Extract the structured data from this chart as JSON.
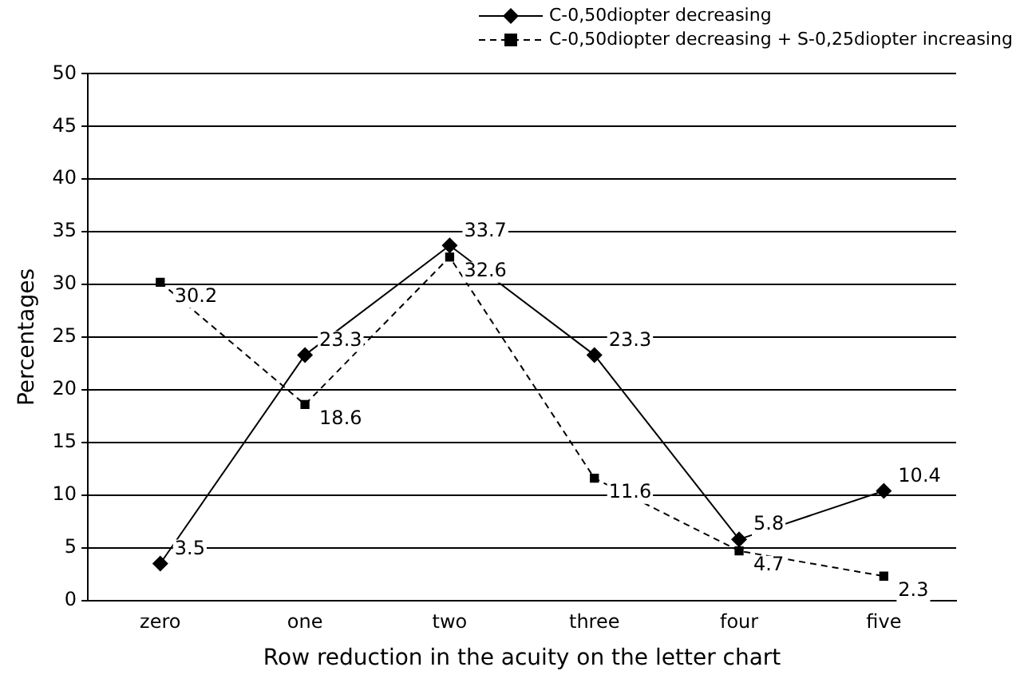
{
  "chart_data": {
    "type": "line",
    "xlabel": "Row reduction in the acuity on the letter chart",
    "ylabel": "Percentages",
    "categories": [
      "zero",
      "one",
      "two",
      "three",
      "four",
      "five"
    ],
    "series": [
      {
        "name": "C-0,50diopter decreasing",
        "color": "#000000",
        "marker": "diamond",
        "line_style": "solid",
        "values": [
          3.5,
          23.3,
          33.7,
          23.3,
          5.8,
          10.4
        ]
      },
      {
        "name": "C-0,50diopter decreasing + S-0,25diopter increasing",
        "color": "#000000",
        "marker": "square",
        "line_style": "dashed",
        "values": [
          30.2,
          18.6,
          32.6,
          11.6,
          4.7,
          2.3
        ]
      }
    ],
    "ylim": [
      0,
      50
    ],
    "yticks": [
      0,
      5,
      10,
      15,
      20,
      25,
      30,
      35,
      40,
      45,
      50
    ],
    "grid": "y",
    "legend": "top",
    "data_labels": true
  }
}
